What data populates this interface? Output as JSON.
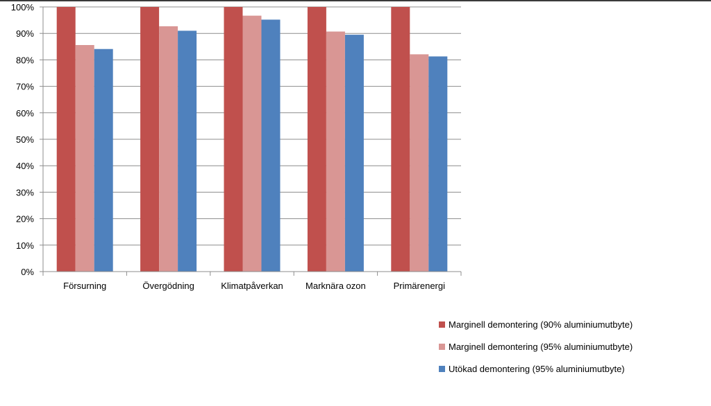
{
  "chart_data": {
    "type": "bar",
    "categories": [
      "Försurning",
      "Övergödning",
      "Klimatpåverkan",
      "Marknära ozon",
      "Primärenergi"
    ],
    "series": [
      {
        "name": "Marginell demontering (90% aluminiumutbyte)",
        "color": "#c0504d",
        "values": [
          100,
          100,
          100,
          100,
          100
        ]
      },
      {
        "name": "Marginell demontering (95% aluminiumutbyte)",
        "color": "#d99694",
        "values": [
          85.6,
          92.7,
          96.7,
          90.7,
          82.1
        ]
      },
      {
        "name": "Utökad demontering (95% aluminiumutbyte)",
        "color": "#4f81bd",
        "values": [
          84.1,
          91.0,
          95.2,
          89.5,
          81.3
        ]
      }
    ],
    "ylim": [
      0,
      100
    ],
    "yticks": [
      "0%",
      "10%",
      "20%",
      "30%",
      "40%",
      "50%",
      "60%",
      "70%",
      "80%",
      "90%",
      "100%"
    ],
    "grid": true,
    "legend": "bottom-right"
  }
}
